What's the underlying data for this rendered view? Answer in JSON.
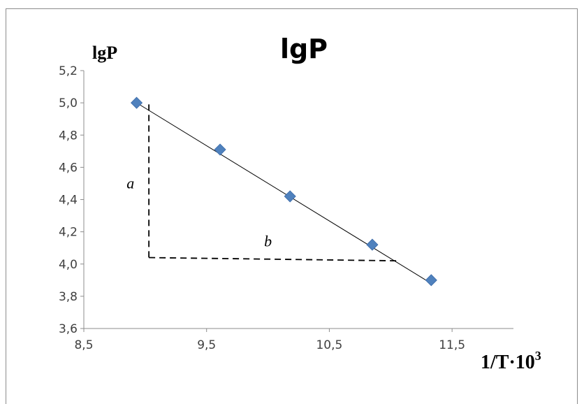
{
  "chart_data": {
    "type": "scatter",
    "title": "lgP",
    "ylabel": "lgP",
    "xlabel_main": "1/T·10",
    "xlabel_sup": "3",
    "xlim": [
      8.5,
      12.0
    ],
    "ylim": [
      3.6,
      5.2
    ],
    "x_ticks": [
      8.5,
      9.5,
      10.5,
      11.5
    ],
    "x_tick_labels": [
      "8,5",
      "9,5",
      "10,5",
      "11,5"
    ],
    "y_ticks": [
      3.6,
      3.8,
      4.0,
      4.2,
      4.4,
      4.6,
      4.8,
      5.0,
      5.2
    ],
    "y_tick_labels": [
      "3,6",
      "3,8",
      "4,0",
      "4,2",
      "4,4",
      "4,6",
      "4,8",
      "5,0",
      "5,2"
    ],
    "grid": false,
    "legend": "none",
    "series": [
      {
        "x": [
          8.93,
          9.61,
          10.18,
          10.85,
          11.33
        ],
        "y": [
          5.0,
          4.71,
          4.42,
          4.12,
          3.9
        ],
        "marker": "diamond",
        "color": "#4f81bd"
      }
    ],
    "trendline": {
      "x": [
        8.93,
        11.33
      ],
      "y": [
        5.0,
        3.88
      ],
      "color": "#000000"
    },
    "annotations": [
      {
        "text": "a",
        "x": 8.88,
        "y": 4.47
      },
      {
        "text": "b",
        "x": 10.0,
        "y": 4.11
      }
    ],
    "guides": [
      {
        "style": "dashed",
        "x": [
          9.03,
          9.03
        ],
        "y": [
          4.99,
          4.04
        ]
      },
      {
        "style": "dashed",
        "x": [
          9.03,
          11.05
        ],
        "y": [
          4.04,
          4.02
        ]
      }
    ]
  }
}
